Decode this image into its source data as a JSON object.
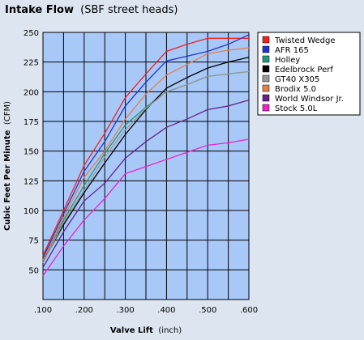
{
  "chart_data": {
    "type": "line",
    "title": "Intake Flow",
    "subtitle": "(SBF street heads)",
    "xlabel": "Valve Lift",
    "xlabel_unit": "(inch)",
    "ylabel": "Cubic Feet Per Minute",
    "ylabel_unit": "(CFM)",
    "x": [
      0.1,
      0.15,
      0.2,
      0.25,
      0.3,
      0.35,
      0.4,
      0.45,
      0.5,
      0.55,
      0.6
    ],
    "x_tick_values": [
      0.1,
      0.2,
      0.3,
      0.4,
      0.5,
      0.6
    ],
    "x_tick_labels": [
      ".100",
      ".200",
      ".300",
      ".400",
      ".500",
      ".600"
    ],
    "xlim": [
      0.1,
      0.6
    ],
    "ylim": [
      25,
      250
    ],
    "y_ticks": [
      50,
      75,
      100,
      125,
      150,
      175,
      200,
      225,
      250
    ],
    "grid": true,
    "legend_position": "right",
    "series": [
      {
        "name": "Twisted Wedge",
        "color": "#ee2222",
        "values": [
          62,
          100,
          138,
          165,
          195,
          215,
          234,
          240,
          245,
          245,
          245
        ]
      },
      {
        "name": "AFR 165",
        "color": "#2233cc",
        "values": [
          60,
          97,
          133,
          158,
          188,
          208,
          226,
          230,
          234,
          240,
          248
        ]
      },
      {
        "name": "Holley",
        "color": "#229977",
        "values": [
          56,
          92,
          121,
          148,
          172,
          187,
          200,
          206,
          213,
          215,
          217
        ]
      },
      {
        "name": "Edelbrock Perf",
        "color": "#000000",
        "values": [
          57,
          88,
          115,
          140,
          164,
          185,
          203,
          212,
          220,
          225,
          229
        ]
      },
      {
        "name": "GT40 X305",
        "color": "#999999",
        "values": [
          56,
          90,
          117,
          145,
          168,
          186,
          200,
          206,
          213,
          215,
          217
        ]
      },
      {
        "name": "Brodix 5.0",
        "color": "#e08050",
        "values": [
          58,
          94,
          128,
          150,
          177,
          198,
          214,
          223,
          232,
          235,
          237
        ]
      },
      {
        "name": "World Windsor Jr.",
        "color": "#662288",
        "values": [
          52,
          82,
          108,
          123,
          144,
          158,
          170,
          177,
          185,
          188,
          193
        ]
      },
      {
        "name": "Stock 5.0L",
        "color": "#ee22cc",
        "values": [
          45,
          70,
          92,
          110,
          131,
          137,
          143,
          149,
          155,
          157,
          160
        ]
      }
    ]
  }
}
